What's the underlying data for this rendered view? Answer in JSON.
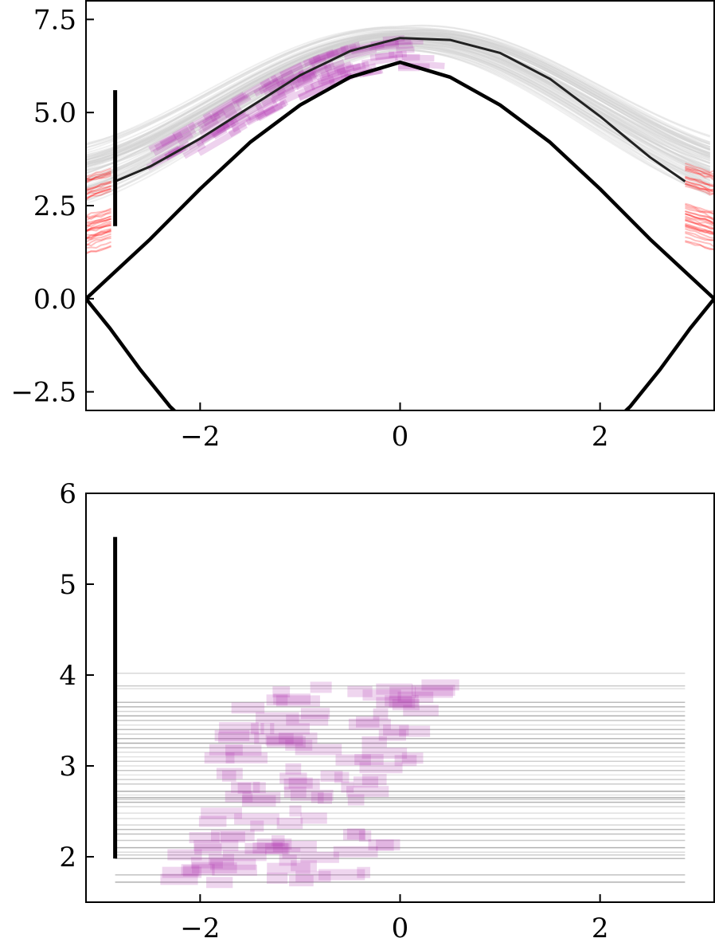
{
  "chart_data": [
    {
      "type": "line",
      "title": "",
      "xlabel": "",
      "ylabel": "",
      "xlim": [
        -3.1416,
        3.1416
      ],
      "ylim": [
        -3.0,
        8.0
      ],
      "grid": false,
      "x_ticks": [
        -2,
        0,
        2
      ],
      "x_tick_labels": [
        "−2",
        "0",
        "2"
      ],
      "y_ticks": [
        -2.5,
        0.0,
        2.5,
        5.0,
        7.5
      ],
      "y_tick_labels": [
        "−2.5",
        "0.0",
        "2.5",
        "5.0",
        "7.5"
      ],
      "colors": {
        "boundary": "#000000",
        "samples": "#d0d0d0",
        "samples_edge": "#ff0000",
        "segments": "#b030b0",
        "mean": "#222222"
      },
      "series": [
        {
          "role": "boundary-upper",
          "x": [
            -3.1416,
            -2.5,
            -2.0,
            -1.5,
            -1.0,
            -0.5,
            0.0,
            0.5,
            1.0,
            1.5,
            2.0,
            2.5,
            3.1416
          ],
          "y": [
            0.0,
            1.6,
            2.95,
            4.2,
            5.2,
            5.95,
            6.35,
            5.95,
            5.2,
            4.2,
            2.95,
            1.6,
            0.0
          ]
        },
        {
          "role": "boundary-lower",
          "x": [
            -3.1416,
            -2.9,
            -2.6,
            -2.3,
            -2.1
          ],
          "y": [
            0.0,
            -0.8,
            -1.9,
            -2.9,
            -3.4
          ]
        },
        {
          "role": "boundary-lower",
          "x": [
            2.1,
            2.3,
            2.6,
            2.9,
            3.1416
          ],
          "y": [
            -3.4,
            -2.9,
            -1.9,
            -0.8,
            0.0
          ]
        },
        {
          "role": "mean-curve",
          "x": [
            -2.85,
            -2.5,
            -2.0,
            -1.5,
            -1.0,
            -0.5,
            0.0,
            0.5,
            1.0,
            1.5,
            2.0,
            2.5,
            2.85
          ],
          "y": [
            3.15,
            3.55,
            4.3,
            5.15,
            6.0,
            6.65,
            7.0,
            6.95,
            6.6,
            5.9,
            4.9,
            3.8,
            3.15
          ]
        }
      ],
      "vertical_bar": {
        "x": -2.85,
        "y0": 1.95,
        "y1": 5.6
      }
    },
    {
      "type": "line",
      "title": "",
      "xlabel": "",
      "ylabel": "",
      "xlim": [
        -3.1416,
        3.1416
      ],
      "ylim": [
        1.5,
        6.0
      ],
      "grid": false,
      "x_ticks": [
        -2,
        0,
        2
      ],
      "x_tick_labels": [
        "−2",
        "0",
        "2"
      ],
      "y_ticks": [
        2,
        3,
        4,
        5,
        6
      ],
      "y_tick_labels": [
        "2",
        "3",
        "4",
        "5",
        "6"
      ],
      "horizontal_lines_range": [
        -2.85,
        2.85
      ],
      "horizontal_levels": [
        1.72,
        1.8,
        1.98,
        2.02,
        2.05,
        2.1,
        2.18,
        2.25,
        2.3,
        2.35,
        2.42,
        2.48,
        2.55,
        2.6,
        2.63,
        2.65,
        2.68,
        2.72,
        2.8,
        2.85,
        2.9,
        2.95,
        3.0,
        3.05,
        3.1,
        3.15,
        3.2,
        3.25,
        3.3,
        3.35,
        3.4,
        3.45,
        3.5,
        3.55,
        3.6,
        3.65,
        3.7,
        3.85,
        3.88,
        4.02
      ],
      "vertical_bar": {
        "x": -2.85,
        "y0": 1.98,
        "y1": 5.52
      }
    }
  ]
}
